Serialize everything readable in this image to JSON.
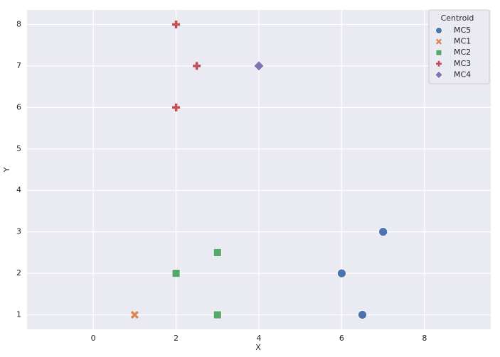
{
  "chart_data": {
    "type": "scatter",
    "xlabel": "X",
    "ylabel": "Y",
    "legend_title": "Centroid",
    "legend": "upper right",
    "grid": true,
    "xlim": [
      -1.6,
      9.6
    ],
    "ylim": [
      0.65,
      8.35
    ],
    "xticks": [
      0,
      2,
      4,
      6,
      8
    ],
    "yticks": [
      1,
      2,
      3,
      4,
      5,
      6,
      7,
      8
    ],
    "series": [
      {
        "name": "MC5",
        "color": "#4c72b0",
        "marker": "circle",
        "x": [
          6,
          6.5,
          7
        ],
        "y": [
          2,
          1,
          3
        ]
      },
      {
        "name": "MC1",
        "color": "#dd8452",
        "marker": "x",
        "x": [
          1
        ],
        "y": [
          1
        ]
      },
      {
        "name": "MC2",
        "color": "#55a868",
        "marker": "square",
        "x": [
          2,
          3,
          3
        ],
        "y": [
          2,
          2.5,
          1
        ]
      },
      {
        "name": "MC3",
        "color": "#c44e52",
        "marker": "plus",
        "x": [
          2,
          2.5,
          2
        ],
        "y": [
          8,
          7,
          6
        ]
      },
      {
        "name": "MC4",
        "color": "#8172b3",
        "marker": "diamond",
        "x": [
          4
        ],
        "y": [
          7
        ]
      }
    ]
  }
}
